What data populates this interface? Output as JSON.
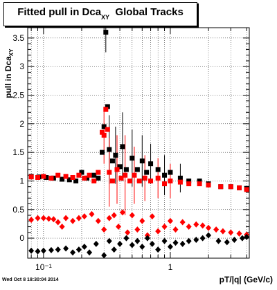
{
  "title_main": "Fitted pull in Dca",
  "title_sub": "XY",
  "title_rest": "Global Tracks",
  "ylabel": "pull in Dca",
  "ylabel_sub": "XY",
  "xlabel": "pT/|q| (GeV/c)",
  "footer": "Wed Oct  8 18:30:04 2014",
  "chart_data": {
    "type": "scatter",
    "xscale": "log",
    "xlim": [
      0.075,
      4.2
    ],
    "ylim": [
      -0.35,
      3.68
    ],
    "grid": true,
    "xticks": [
      {
        "v": 0.1,
        "label": "10⁻¹"
      },
      {
        "v": 1,
        "label": "1"
      }
    ],
    "yticks": [
      0,
      0.5,
      1,
      1.5,
      2,
      2.5,
      3,
      3.5
    ],
    "series": [
      {
        "color": "#000000",
        "marker": "square",
        "points": [
          [
            0.08,
            1.08
          ],
          [
            0.092,
            1.07
          ],
          [
            0.105,
            1.06
          ],
          [
            0.12,
            1.05
          ],
          [
            0.14,
            1.03
          ],
          [
            0.16,
            1.02
          ],
          [
            0.18,
            1.0
          ],
          [
            0.2,
            1.15
          ],
          [
            0.22,
            1.05
          ],
          [
            0.25,
            1.1
          ],
          [
            0.27,
            1.05
          ],
          [
            0.29,
            1.5
          ],
          [
            0.3,
            1.95
          ],
          [
            0.31,
            3.6
          ],
          [
            0.32,
            2.3
          ],
          [
            0.33,
            1.55
          ],
          [
            0.35,
            1.35
          ],
          [
            0.37,
            1.45
          ],
          [
            0.4,
            1.25
          ],
          [
            0.42,
            1.6
          ],
          [
            0.45,
            1.2
          ],
          [
            0.5,
            1.4
          ],
          [
            0.55,
            1.2
          ],
          [
            0.6,
            1.35
          ],
          [
            0.65,
            1.15
          ],
          [
            0.7,
            1.3
          ],
          [
            0.8,
            1.2
          ],
          [
            0.9,
            1.1
          ],
          [
            1.0,
            1.15
          ],
          [
            1.2,
            1.05
          ],
          [
            1.4,
            1.0
          ],
          [
            1.7,
            1.0
          ],
          [
            2.0,
            0.95
          ],
          [
            2.5,
            0.9
          ],
          [
            3.0,
            0.9
          ],
          [
            3.5,
            0.88
          ],
          [
            4.0,
            0.87
          ]
        ],
        "err": [
          [
            0.31,
            0.35
          ],
          [
            0.33,
            0.6
          ],
          [
            0.37,
            0.5
          ],
          [
            0.42,
            0.6
          ],
          [
            0.5,
            0.5
          ],
          [
            0.6,
            0.45
          ],
          [
            0.7,
            0.35
          ],
          [
            0.9,
            0.35
          ],
          [
            1.2,
            0.25
          ]
        ]
      },
      {
        "color": "#ff0000",
        "marker": "square",
        "points": [
          [
            0.08,
            1.07
          ],
          [
            0.09,
            1.06
          ],
          [
            0.1,
            1.08
          ],
          [
            0.115,
            1.05
          ],
          [
            0.13,
            1.1
          ],
          [
            0.15,
            1.08
          ],
          [
            0.17,
            1.06
          ],
          [
            0.19,
            1.1
          ],
          [
            0.21,
            1.05
          ],
          [
            0.23,
            1.1
          ],
          [
            0.25,
            1.0
          ],
          [
            0.27,
            1.15
          ],
          [
            0.29,
            1.85
          ],
          [
            0.3,
            1.8
          ],
          [
            0.31,
            2.25
          ],
          [
            0.32,
            1.9
          ],
          [
            0.33,
            1.15
          ],
          [
            0.35,
            1.0
          ],
          [
            0.38,
            1.2
          ],
          [
            0.41,
            1.05
          ],
          [
            0.44,
            1.1
          ],
          [
            0.48,
            1.0
          ],
          [
            0.52,
            1.1
          ],
          [
            0.57,
            1.0
          ],
          [
            0.63,
            1.05
          ],
          [
            0.7,
            1.0
          ],
          [
            0.8,
            1.05
          ],
          [
            0.9,
            0.95
          ],
          [
            1.0,
            1.0
          ],
          [
            1.2,
            0.98
          ],
          [
            1.4,
            0.95
          ],
          [
            1.7,
            0.95
          ],
          [
            2.0,
            0.93
          ],
          [
            2.5,
            0.9
          ],
          [
            3.0,
            0.9
          ],
          [
            3.5,
            0.88
          ],
          [
            4.0,
            0.85
          ]
        ],
        "err": [
          [
            0.3,
            0.5
          ],
          [
            0.33,
            0.6
          ],
          [
            0.38,
            0.6
          ],
          [
            0.44,
            0.7
          ],
          [
            0.52,
            0.5
          ],
          [
            0.63,
            0.4
          ],
          [
            0.8,
            0.35
          ],
          [
            1.0,
            0.3
          ]
        ]
      },
      {
        "color": "#ff0000",
        "marker": "diamond",
        "points": [
          [
            0.08,
            0.32
          ],
          [
            0.09,
            0.35
          ],
          [
            0.1,
            0.35
          ],
          [
            0.11,
            0.34
          ],
          [
            0.12,
            0.33
          ],
          [
            0.13,
            0.28
          ],
          [
            0.14,
            0.2
          ],
          [
            0.15,
            0.35
          ],
          [
            0.17,
            0.3
          ],
          [
            0.19,
            0.35
          ],
          [
            0.21,
            0.38
          ],
          [
            0.24,
            0.42
          ],
          [
            0.27,
            0.3
          ],
          [
            0.3,
            0.15
          ],
          [
            0.33,
            0.35
          ],
          [
            0.36,
            0.4
          ],
          [
            0.39,
            0.2
          ],
          [
            0.42,
            0.45
          ],
          [
            0.46,
            0.1
          ],
          [
            0.5,
            0.4
          ],
          [
            0.55,
            0.15
          ],
          [
            0.6,
            0.3
          ],
          [
            0.66,
            0.05
          ],
          [
            0.72,
            0.38
          ],
          [
            0.8,
            0.12
          ],
          [
            0.9,
            0.2
          ],
          [
            1.0,
            0.3
          ],
          [
            1.1,
            0.15
          ],
          [
            1.25,
            0.28
          ],
          [
            1.4,
            0.2
          ],
          [
            1.6,
            0.24
          ],
          [
            1.8,
            0.22
          ],
          [
            2.0,
            0.18
          ],
          [
            2.3,
            0.15
          ],
          [
            2.6,
            0.12
          ],
          [
            3.0,
            0.1
          ],
          [
            3.5,
            0.08
          ],
          [
            4.0,
            0.06
          ]
        ]
      },
      {
        "color": "#000000",
        "marker": "diamond",
        "points": [
          [
            0.08,
            -0.22
          ],
          [
            0.09,
            -0.23
          ],
          [
            0.1,
            -0.22
          ],
          [
            0.115,
            -0.21
          ],
          [
            0.13,
            -0.2
          ],
          [
            0.15,
            -0.18
          ],
          [
            0.17,
            -0.25
          ],
          [
            0.19,
            -0.2
          ],
          [
            0.21,
            -0.15
          ],
          [
            0.23,
            -0.25
          ],
          [
            0.26,
            -0.1
          ],
          [
            0.3,
            -0.3
          ],
          [
            0.33,
            -0.05
          ],
          [
            0.36,
            -0.2
          ],
          [
            0.4,
            -0.1
          ],
          [
            0.45,
            0.0
          ],
          [
            0.5,
            -0.12
          ],
          [
            0.55,
            -0.05
          ],
          [
            0.6,
            -0.15
          ],
          [
            0.66,
            0.0
          ],
          [
            0.72,
            -0.1
          ],
          [
            0.8,
            -0.2
          ],
          [
            0.9,
            -0.05
          ],
          [
            1.0,
            -0.15
          ],
          [
            1.1,
            -0.08
          ],
          [
            1.25,
            -0.1
          ],
          [
            1.4,
            -0.05
          ],
          [
            1.6,
            -0.03
          ],
          [
            1.8,
            0.0
          ],
          [
            2.0,
            0.05
          ],
          [
            2.4,
            -0.05
          ],
          [
            2.8,
            -0.07
          ],
          [
            3.2,
            -0.03
          ],
          [
            3.7,
            0.0
          ],
          [
            4.0,
            0.02
          ]
        ]
      }
    ]
  }
}
